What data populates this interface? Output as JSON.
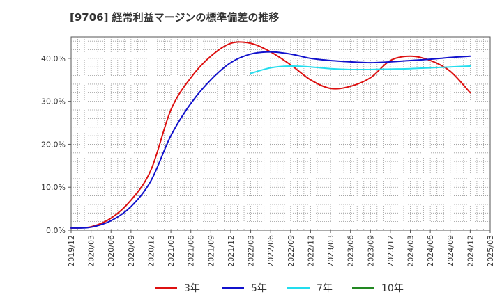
{
  "chart_data": {
    "type": "line",
    "title": "[9706]  経常利益マージンの標準偏差の推移",
    "xlabel": "",
    "ylabel": "",
    "x_ticks": [
      "2019/12",
      "2020/03",
      "2020/06",
      "2020/09",
      "2020/12",
      "2021/03",
      "2021/06",
      "2021/09",
      "2021/12",
      "2022/03",
      "2022/06",
      "2022/09",
      "2022/12",
      "2023/03",
      "2023/06",
      "2023/09",
      "2023/12",
      "2024/03",
      "2024/06",
      "2024/09",
      "2024/12",
      "2025/03"
    ],
    "x_range": [
      "2019/12",
      "2025/03"
    ],
    "ylim": [
      0,
      45
    ],
    "y_ticks": [
      0,
      10,
      20,
      30,
      40
    ],
    "y_tick_labels": [
      "0.0%",
      "10.0%",
      "20.0%",
      "30.0%",
      "40.0%"
    ],
    "grid": true,
    "legend_position": "bottom",
    "series": [
      {
        "name": "3年",
        "color": "#dd1111",
        "points": [
          [
            "2019/12",
            0.5
          ],
          [
            "2020/03",
            0.8
          ],
          [
            "2020/06",
            2.8
          ],
          [
            "2020/09",
            7.0
          ],
          [
            "2020/12",
            14.0
          ],
          [
            "2021/03",
            28.0
          ],
          [
            "2021/06",
            35.5
          ],
          [
            "2021/09",
            40.5
          ],
          [
            "2021/12",
            43.5
          ],
          [
            "2022/03",
            43.5
          ],
          [
            "2022/06",
            41.5
          ],
          [
            "2022/09",
            38.5
          ],
          [
            "2022/12",
            35.0
          ],
          [
            "2023/03",
            33.0
          ],
          [
            "2023/06",
            33.5
          ],
          [
            "2023/09",
            35.5
          ],
          [
            "2023/12",
            39.5
          ],
          [
            "2024/03",
            40.5
          ],
          [
            "2024/06",
            39.5
          ],
          [
            "2024/09",
            37.0
          ],
          [
            "2024/12",
            32.0
          ]
        ]
      },
      {
        "name": "5年",
        "color": "#1111cc",
        "points": [
          [
            "2019/12",
            0.5
          ],
          [
            "2020/03",
            0.7
          ],
          [
            "2020/06",
            2.2
          ],
          [
            "2020/09",
            5.5
          ],
          [
            "2020/12",
            11.5
          ],
          [
            "2021/03",
            22.0
          ],
          [
            "2021/06",
            29.5
          ],
          [
            "2021/09",
            35.0
          ],
          [
            "2021/12",
            39.0
          ],
          [
            "2022/03",
            41.0
          ],
          [
            "2022/06",
            41.5
          ],
          [
            "2022/09",
            41.0
          ],
          [
            "2022/12",
            40.0
          ],
          [
            "2023/03",
            39.5
          ],
          [
            "2023/06",
            39.2
          ],
          [
            "2023/09",
            39.0
          ],
          [
            "2023/12",
            39.2
          ],
          [
            "2024/03",
            39.5
          ],
          [
            "2024/06",
            39.8
          ],
          [
            "2024/09",
            40.2
          ],
          [
            "2024/12",
            40.5
          ]
        ]
      },
      {
        "name": "7年",
        "color": "#22ddee",
        "points": [
          [
            "2022/03",
            36.5
          ],
          [
            "2022/06",
            37.8
          ],
          [
            "2022/09",
            38.2
          ],
          [
            "2022/12",
            38.0
          ],
          [
            "2023/03",
            37.6
          ],
          [
            "2023/06",
            37.4
          ],
          [
            "2023/09",
            37.4
          ],
          [
            "2023/12",
            37.5
          ],
          [
            "2024/03",
            37.6
          ],
          [
            "2024/06",
            37.8
          ],
          [
            "2024/09",
            38.0
          ],
          [
            "2024/12",
            38.2
          ]
        ]
      },
      {
        "name": "10年",
        "color": "#228822",
        "points": []
      }
    ]
  }
}
